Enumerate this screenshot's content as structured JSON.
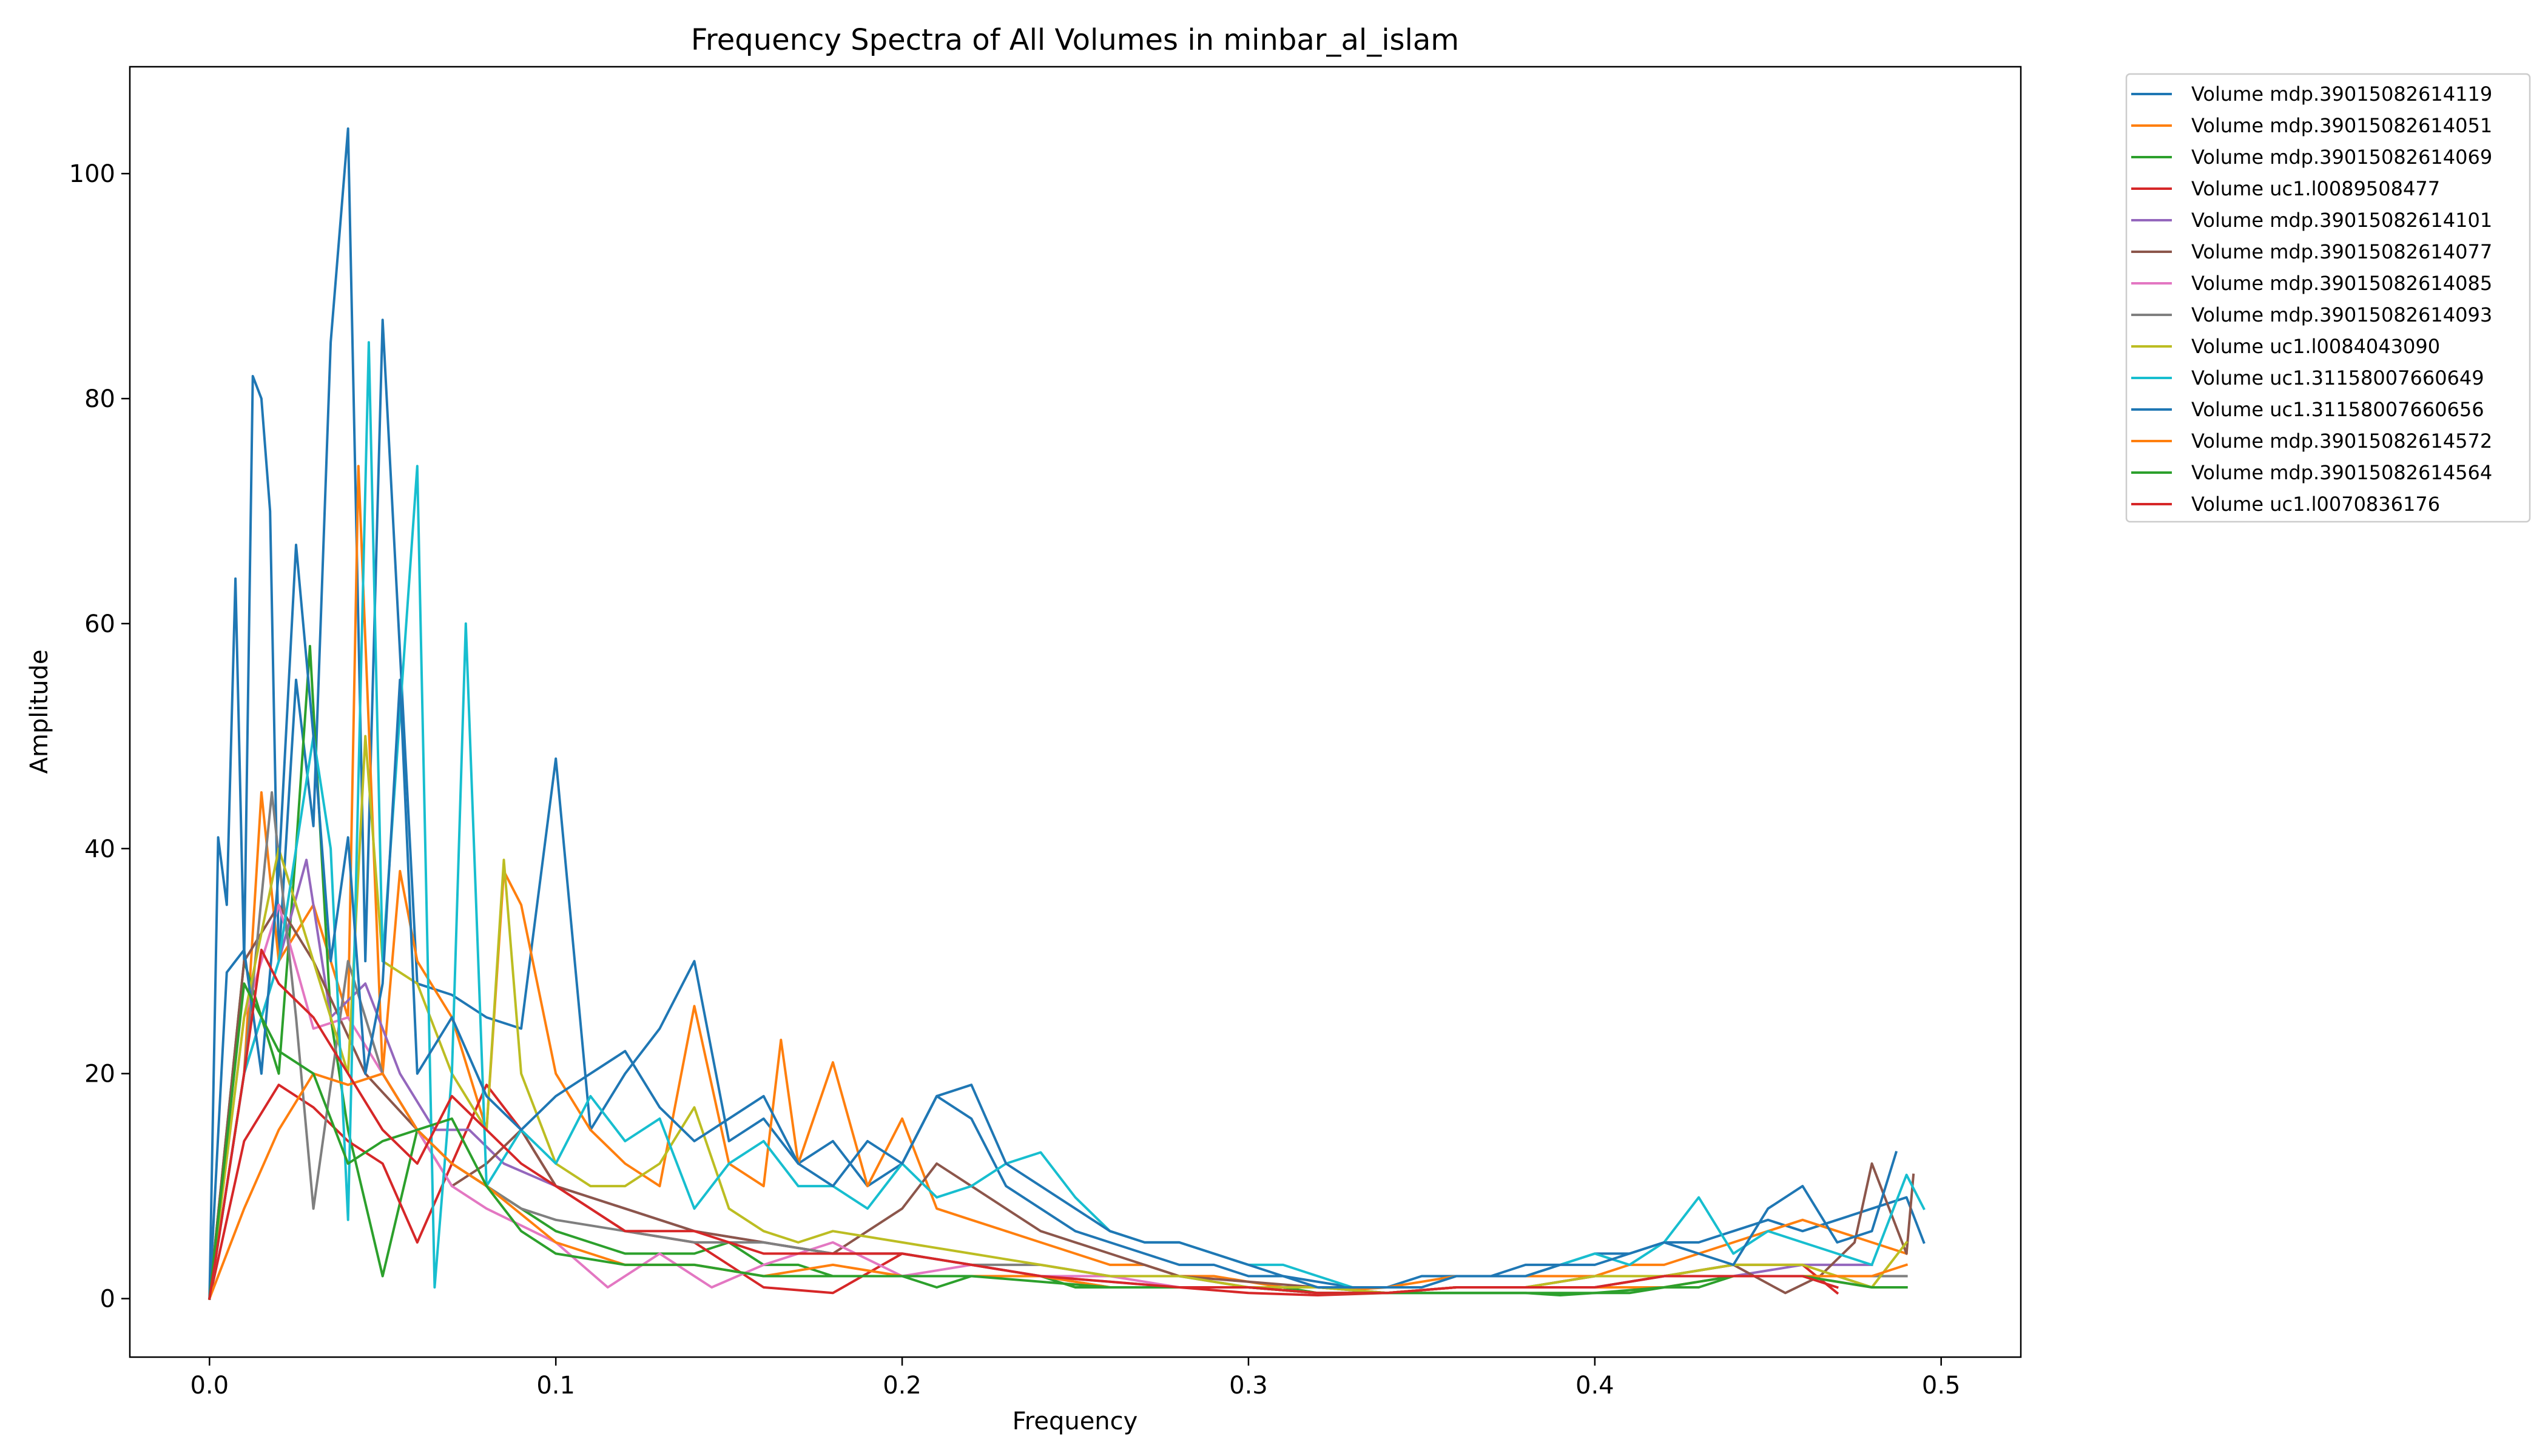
{
  "chart_data": {
    "type": "line",
    "title": "Frequency Spectra of All Volumes in minbar_al_islam",
    "xlabel": "Frequency",
    "ylabel": "Amplitude",
    "xlim": [
      -0.023,
      0.523
    ],
    "ylim": [
      -5.2,
      109.5
    ],
    "xticks": [
      0.0,
      0.1,
      0.2,
      0.3,
      0.4,
      0.5
    ],
    "xtick_labels": [
      "0.0",
      "0.1",
      "0.2",
      "0.3",
      "0.4",
      "0.5"
    ],
    "yticks": [
      0,
      20,
      40,
      60,
      80,
      100
    ],
    "ytick_labels": [
      "0",
      "20",
      "40",
      "60",
      "80",
      "100"
    ],
    "grid": false,
    "legend_position": "outside-top-right",
    "series": [
      {
        "name": "Volume mdp.39015082614119",
        "color": "#1f77b4",
        "x": [
          0.0,
          0.0025,
          0.005,
          0.0075,
          0.01,
          0.0125,
          0.015,
          0.0175,
          0.02,
          0.025,
          0.03,
          0.035,
          0.04,
          0.045,
          0.05,
          0.06,
          0.07,
          0.08,
          0.09,
          0.1,
          0.11,
          0.12,
          0.13,
          0.14,
          0.15,
          0.16,
          0.17,
          0.18,
          0.19,
          0.2,
          0.21,
          0.22,
          0.23,
          0.24,
          0.25,
          0.26,
          0.27,
          0.28,
          0.29,
          0.3,
          0.31,
          0.32,
          0.33,
          0.34,
          0.35,
          0.36,
          0.37,
          0.38,
          0.39,
          0.4,
          0.41,
          0.42,
          0.43,
          0.44,
          0.45,
          0.46,
          0.47,
          0.48,
          0.49,
          0.495
        ],
        "y": [
          0,
          41,
          35,
          64,
          30,
          82,
          80,
          70,
          30,
          55,
          42,
          85,
          104,
          30,
          87,
          28,
          27,
          25,
          24,
          48,
          15,
          20,
          24,
          30,
          14,
          16,
          12,
          14,
          10,
          12,
          18,
          16,
          10,
          8,
          6,
          5,
          4,
          3,
          3,
          2,
          2,
          1.5,
          1,
          1,
          2,
          2,
          2,
          3,
          3,
          4,
          4,
          5,
          5,
          6,
          7,
          6,
          7,
          8,
          9,
          5
        ]
      },
      {
        "name": "Volume mdp.39015082614051",
        "color": "#ff7f0e",
        "x": [
          0.0,
          0.005,
          0.01,
          0.015,
          0.02,
          0.03,
          0.04,
          0.043,
          0.05,
          0.055,
          0.06,
          0.07,
          0.08,
          0.085,
          0.09,
          0.1,
          0.11,
          0.12,
          0.13,
          0.14,
          0.15,
          0.16,
          0.165,
          0.17,
          0.18,
          0.19,
          0.2,
          0.21,
          0.22,
          0.23,
          0.24,
          0.25,
          0.26,
          0.27,
          0.28,
          0.29,
          0.3,
          0.31,
          0.32,
          0.33,
          0.34,
          0.35,
          0.36,
          0.37,
          0.38,
          0.39,
          0.4,
          0.41,
          0.42,
          0.43,
          0.44,
          0.45,
          0.46,
          0.47,
          0.48,
          0.49
        ],
        "y": [
          0,
          10,
          20,
          45,
          30,
          35,
          25,
          74,
          20,
          38,
          30,
          25,
          15,
          38,
          35,
          20,
          15,
          12,
          10,
          26,
          12,
          10,
          23,
          12,
          21,
          10,
          16,
          8,
          7,
          6,
          5,
          4,
          3,
          3,
          2,
          2,
          1.5,
          1,
          1,
          0.8,
          1,
          1.5,
          2,
          2,
          2,
          2,
          2,
          3,
          3,
          4,
          5,
          6,
          7,
          6,
          5,
          4
        ]
      },
      {
        "name": "Volume mdp.39015082614069",
        "color": "#2ca02c",
        "x": [
          0.0,
          0.01,
          0.02,
          0.025,
          0.029,
          0.035,
          0.04,
          0.05,
          0.06,
          0.07,
          0.08,
          0.09,
          0.1,
          0.11,
          0.12,
          0.13,
          0.14,
          0.15,
          0.16,
          0.17,
          0.18,
          0.19,
          0.2,
          0.21,
          0.22,
          0.23,
          0.24,
          0.25,
          0.26,
          0.27,
          0.28,
          0.29,
          0.3,
          0.31,
          0.32,
          0.33,
          0.34,
          0.35,
          0.36,
          0.37,
          0.38,
          0.39,
          0.4,
          0.41,
          0.42,
          0.43,
          0.44,
          0.45,
          0.46,
          0.47,
          0.48,
          0.49
        ],
        "y": [
          0,
          30,
          20,
          40,
          58,
          25,
          15,
          2,
          15,
          12,
          10,
          8,
          6,
          5,
          4,
          4,
          4,
          5,
          3,
          3,
          2,
          2,
          2,
          1,
          2,
          2,
          2,
          1,
          1,
          1,
          1,
          1,
          1,
          1,
          0.5,
          0.5,
          0.5,
          0.5,
          0.5,
          0.5,
          0.5,
          0.3,
          0.5,
          0.5,
          1,
          1,
          2,
          2,
          2,
          2,
          1,
          1
        ]
      },
      {
        "name": "Volume uc1.l0089508477",
        "color": "#d62728",
        "x": [
          0.0,
          0.01,
          0.02,
          0.03,
          0.04,
          0.05,
          0.06,
          0.07,
          0.08,
          0.09,
          0.1,
          0.12,
          0.14,
          0.16,
          0.18,
          0.2,
          0.22,
          0.24,
          0.26,
          0.28,
          0.3,
          0.32,
          0.34,
          0.36,
          0.38,
          0.4,
          0.42,
          0.44,
          0.46,
          0.47
        ],
        "y": [
          0,
          14,
          19,
          17,
          14,
          12,
          5,
          12,
          19,
          15,
          10,
          6,
          5,
          1,
          0.5,
          4,
          3,
          2,
          1,
          1,
          0.5,
          0.3,
          0.5,
          1,
          1,
          2,
          2,
          3,
          3,
          0.5
        ]
      },
      {
        "name": "Volume mdp.39015082614101",
        "color": "#9467bd",
        "x": [
          0.0,
          0.01,
          0.02,
          0.028,
          0.035,
          0.045,
          0.055,
          0.065,
          0.075,
          0.085,
          0.1,
          0.12,
          0.14,
          0.16,
          0.18,
          0.2,
          0.22,
          0.24,
          0.26,
          0.28,
          0.3,
          0.32,
          0.34,
          0.36,
          0.38,
          0.4,
          0.42,
          0.44,
          0.46,
          0.48
        ],
        "y": [
          0,
          20,
          30,
          39,
          25,
          28,
          20,
          15,
          15,
          12,
          10,
          8,
          6,
          5,
          4,
          4,
          3,
          2,
          1.5,
          1,
          1,
          0.5,
          0.5,
          1,
          1,
          1,
          2,
          2,
          3,
          3
        ]
      },
      {
        "name": "Volume mdp.39015082614077",
        "color": "#8c564b",
        "x": [
          0.0,
          0.01,
          0.02,
          0.03,
          0.045,
          0.06,
          0.07,
          0.08,
          0.09,
          0.1,
          0.12,
          0.14,
          0.16,
          0.18,
          0.2,
          0.21,
          0.22,
          0.24,
          0.26,
          0.28,
          0.3,
          0.32,
          0.34,
          0.36,
          0.38,
          0.4,
          0.42,
          0.44,
          0.455,
          0.465,
          0.475,
          0.48,
          0.49,
          0.492
        ],
        "y": [
          0,
          30,
          35,
          30,
          20,
          15,
          10,
          12,
          15,
          10,
          8,
          6,
          5,
          4,
          8,
          12,
          10,
          6,
          4,
          2,
          1.5,
          1,
          0.5,
          1,
          1,
          2,
          2,
          3,
          0.5,
          2,
          5,
          12,
          4,
          11
        ]
      },
      {
        "name": "Volume mdp.39015082614085",
        "color": "#e377c2",
        "x": [
          0.0,
          0.01,
          0.02,
          0.03,
          0.04,
          0.05,
          0.06,
          0.07,
          0.08,
          0.1,
          0.115,
          0.13,
          0.145,
          0.16,
          0.18,
          0.2,
          0.22,
          0.24,
          0.26,
          0.28,
          0.3,
          0.32,
          0.34,
          0.36,
          0.38,
          0.4,
          0.42,
          0.44,
          0.46,
          0.48,
          0.49
        ],
        "y": [
          0,
          25,
          35,
          24,
          25,
          20,
          15,
          10,
          8,
          5,
          1,
          4,
          1,
          3,
          5,
          2,
          3,
          2,
          2,
          1,
          1,
          0.5,
          0.5,
          1,
          1,
          1,
          2,
          2,
          2,
          1,
          1
        ]
      },
      {
        "name": "Volume mdp.39015082614093",
        "color": "#7f7f7f",
        "x": [
          0.0,
          0.01,
          0.018,
          0.025,
          0.03,
          0.04,
          0.05,
          0.06,
          0.07,
          0.08,
          0.09,
          0.1,
          0.12,
          0.14,
          0.16,
          0.18,
          0.2,
          0.22,
          0.24,
          0.26,
          0.28,
          0.3,
          0.32,
          0.34,
          0.36,
          0.38,
          0.4,
          0.42,
          0.44,
          0.46,
          0.48,
          0.49
        ],
        "y": [
          0,
          20,
          45,
          25,
          8,
          30,
          20,
          15,
          12,
          10,
          8,
          7,
          6,
          5,
          5,
          4,
          4,
          3,
          3,
          2,
          2,
          1,
          1,
          0.5,
          1,
          1,
          1,
          2,
          2,
          2,
          2,
          2
        ]
      },
      {
        "name": "Volume uc1.l0084043090",
        "color": "#bcbd22",
        "x": [
          0.0,
          0.01,
          0.02,
          0.03,
          0.04,
          0.045,
          0.05,
          0.06,
          0.07,
          0.08,
          0.085,
          0.09,
          0.1,
          0.11,
          0.12,
          0.13,
          0.14,
          0.15,
          0.16,
          0.17,
          0.18,
          0.2,
          0.22,
          0.24,
          0.26,
          0.28,
          0.3,
          0.32,
          0.34,
          0.36,
          0.38,
          0.4,
          0.42,
          0.44,
          0.46,
          0.48,
          0.49
        ],
        "y": [
          0,
          25,
          40,
          30,
          20,
          50,
          30,
          28,
          20,
          15,
          39,
          20,
          12,
          10,
          10,
          12,
          17,
          8,
          6,
          5,
          6,
          5,
          4,
          3,
          2,
          2,
          1,
          1,
          0.5,
          1,
          1,
          2,
          2,
          3,
          3,
          1,
          5
        ]
      },
      {
        "name": "Volume uc1.31158007660649",
        "color": "#17becf",
        "x": [
          0.0,
          0.01,
          0.02,
          0.03,
          0.035,
          0.04,
          0.046,
          0.05,
          0.06,
          0.065,
          0.07,
          0.074,
          0.08,
          0.09,
          0.1,
          0.11,
          0.12,
          0.13,
          0.14,
          0.15,
          0.16,
          0.17,
          0.18,
          0.19,
          0.2,
          0.21,
          0.22,
          0.23,
          0.24,
          0.25,
          0.26,
          0.27,
          0.28,
          0.29,
          0.3,
          0.31,
          0.32,
          0.33,
          0.34,
          0.35,
          0.36,
          0.37,
          0.38,
          0.39,
          0.4,
          0.41,
          0.42,
          0.43,
          0.44,
          0.45,
          0.46,
          0.47,
          0.48,
          0.49,
          0.495
        ],
        "y": [
          0,
          20,
          30,
          50,
          40,
          7,
          85,
          30,
          74,
          1,
          20,
          60,
          10,
          15,
          12,
          18,
          14,
          16,
          8,
          12,
          14,
          10,
          10,
          8,
          12,
          9,
          10,
          12,
          13,
          9,
          6,
          5,
          5,
          4,
          3,
          3,
          2,
          1,
          1,
          1,
          2,
          2,
          2,
          3,
          4,
          3,
          5,
          9,
          4,
          6,
          5,
          4,
          3,
          11,
          8
        ]
      },
      {
        "name": "Volume uc1.31158007660656",
        "color": "#1f77b4",
        "x": [
          0.0,
          0.005,
          0.01,
          0.015,
          0.02,
          0.025,
          0.03,
          0.035,
          0.04,
          0.045,
          0.05,
          0.055,
          0.06,
          0.07,
          0.08,
          0.09,
          0.1,
          0.11,
          0.12,
          0.13,
          0.14,
          0.15,
          0.16,
          0.17,
          0.18,
          0.19,
          0.2,
          0.21,
          0.22,
          0.23,
          0.24,
          0.25,
          0.26,
          0.27,
          0.28,
          0.29,
          0.3,
          0.31,
          0.32,
          0.33,
          0.34,
          0.35,
          0.36,
          0.37,
          0.38,
          0.39,
          0.4,
          0.41,
          0.42,
          0.43,
          0.44,
          0.45,
          0.46,
          0.47,
          0.48,
          0.487
        ],
        "y": [
          0,
          29,
          31,
          20,
          38,
          67,
          50,
          30,
          41,
          20,
          28,
          55,
          20,
          25,
          18,
          15,
          18,
          20,
          22,
          17,
          14,
          16,
          18,
          12,
          10,
          14,
          12,
          18,
          19,
          12,
          10,
          8,
          6,
          5,
          5,
          4,
          3,
          2,
          1,
          1,
          1,
          1,
          2,
          2,
          2,
          3,
          3,
          4,
          5,
          4,
          3,
          8,
          10,
          5,
          6,
          13
        ]
      },
      {
        "name": "Volume mdp.39015082614572",
        "color": "#ff7f0e",
        "x": [
          0.0,
          0.01,
          0.02,
          0.03,
          0.04,
          0.05,
          0.06,
          0.07,
          0.08,
          0.1,
          0.12,
          0.14,
          0.16,
          0.18,
          0.2,
          0.22,
          0.24,
          0.26,
          0.28,
          0.3,
          0.32,
          0.34,
          0.36,
          0.38,
          0.4,
          0.42,
          0.44,
          0.46,
          0.48,
          0.49
        ],
        "y": [
          0,
          8,
          15,
          20,
          19,
          20,
          15,
          12,
          10,
          5,
          3,
          3,
          2,
          3,
          2,
          2,
          2,
          1,
          1,
          1,
          0.5,
          0.5,
          1,
          1,
          1,
          1,
          2,
          2,
          2,
          3
        ]
      },
      {
        "name": "Volume mdp.39015082614564",
        "color": "#2ca02c",
        "x": [
          0.0,
          0.01,
          0.02,
          0.03,
          0.04,
          0.05,
          0.06,
          0.07,
          0.08,
          0.09,
          0.1,
          0.12,
          0.14,
          0.16,
          0.18,
          0.2,
          0.22,
          0.24,
          0.26,
          0.28,
          0.3,
          0.32,
          0.34,
          0.36,
          0.38,
          0.4,
          0.42,
          0.44,
          0.46,
          0.48,
          0.49
        ],
        "y": [
          0,
          28,
          22,
          20,
          12,
          14,
          15,
          16,
          10,
          6,
          4,
          3,
          3,
          2,
          2,
          2,
          2,
          1.5,
          1,
          1,
          1,
          0.5,
          0.5,
          0.5,
          0.5,
          0.5,
          1,
          2,
          2,
          1,
          1
        ]
      },
      {
        "name": "Volume uc1.l0070836176",
        "color": "#d62728",
        "x": [
          0.0,
          0.01,
          0.015,
          0.02,
          0.03,
          0.04,
          0.05,
          0.06,
          0.07,
          0.08,
          0.09,
          0.1,
          0.12,
          0.14,
          0.16,
          0.18,
          0.2,
          0.22,
          0.24,
          0.26,
          0.28,
          0.3,
          0.32,
          0.34,
          0.36,
          0.38,
          0.4,
          0.42,
          0.44,
          0.46,
          0.47
        ],
        "y": [
          0,
          20,
          31,
          28,
          25,
          20,
          15,
          12,
          18,
          15,
          12,
          10,
          6,
          6,
          4,
          4,
          4,
          3,
          2,
          1.5,
          1,
          1,
          0.5,
          0.5,
          1,
          1,
          1,
          2,
          2,
          2,
          1
        ]
      }
    ]
  }
}
